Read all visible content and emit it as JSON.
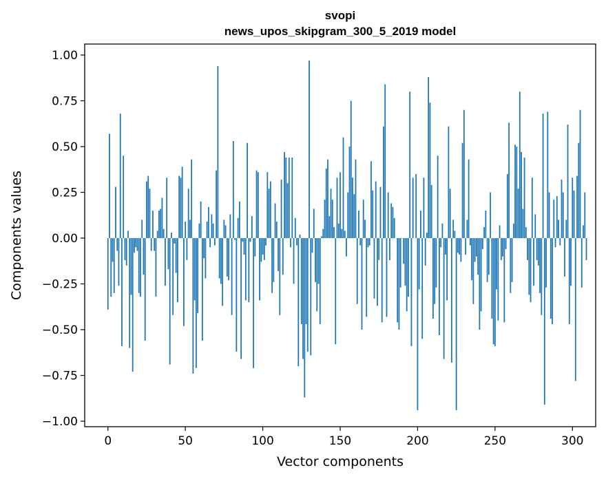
{
  "chart_data": {
    "type": "bar",
    "title": "svopi",
    "subtitle": "news_upos_skipgram_300_5_2019 model",
    "xlabel": "Vector components",
    "ylabel": "Components values",
    "xlim": [
      -15,
      315
    ],
    "ylim": [
      -1.03,
      1.06
    ],
    "xticks": [
      0,
      50,
      100,
      150,
      200,
      250,
      300
    ],
    "yticks": [
      -1.0,
      -0.75,
      -0.5,
      -0.25,
      0.0,
      0.25,
      0.5,
      0.75,
      1.0
    ],
    "xtick_labels": [
      "0",
      "50",
      "100",
      "150",
      "200",
      "250",
      "300"
    ],
    "ytick_labels": [
      "−1.00",
      "−0.75",
      "−0.50",
      "−0.25",
      "0.00",
      "0.25",
      "0.50",
      "0.75",
      "1.00"
    ],
    "bar_color": "#1f77b4",
    "grid": false,
    "values": [
      -0.39,
      0.57,
      -0.32,
      -0.13,
      -0.3,
      0.28,
      -0.07,
      -0.26,
      0.68,
      -0.59,
      0.45,
      -0.12,
      -0.15,
      0.04,
      -0.6,
      -0.31,
      -0.73,
      -0.08,
      -0.05,
      -0.07,
      -0.3,
      -0.32,
      0.1,
      -0.2,
      -0.56,
      0.31,
      0.34,
      0.27,
      -0.07,
      0.15,
      -0.07,
      -0.32,
      0.04,
      0.15,
      0.16,
      0.22,
      0.05,
      -0.26,
      0.33,
      -0.17,
      -0.69,
      0.03,
      -0.42,
      -0.03,
      -0.19,
      -0.35,
      0.34,
      0.33,
      0.39,
      -0.48,
      0.09,
      -0.12,
      0.27,
      0.1,
      0.43,
      -0.74,
      -0.34,
      -0.71,
      -0.41,
      0.08,
      0.2,
      -0.56,
      -0.11,
      -0.22,
      0.09,
      0.17,
      -0.05,
      0.13,
      0.08,
      -0.04,
      0.37,
      0.94,
      -0.22,
      -0.25,
      -0.37,
      0.1,
      0.07,
      -0.21,
      -0.23,
      0.13,
      -0.42,
      0.53,
      -0.01,
      -0.62,
      0.11,
      0.2,
      -0.66,
      -0.02,
      -0.09,
      -0.34,
      0.52,
      -0.35,
      -0.02,
      0.12,
      -0.71,
      -0.1,
      0.37,
      0.36,
      -0.34,
      -0.13,
      -0.09,
      -0.12,
      -0.04,
      0.36,
      0.27,
      0.31,
      -0.3,
      -0.24,
      0.19,
      0.09,
      -0.18,
      -0.42,
      0.32,
      -0.2,
      0.47,
      0.44,
      0.3,
      0.44,
      -0.05,
      0.44,
      -0.25,
      0.11,
      -0.04,
      -0.7,
      0.02,
      -0.47,
      -0.66,
      -0.87,
      -0.47,
      -0.62,
      0.97,
      -0.64,
      -0.08,
      0.16,
      -0.24,
      -0.4,
      -0.25,
      -0.47,
      0.01,
      0.05,
      0.21,
      0.38,
      0.43,
      0.12,
      0.27,
      0.21,
      0.06,
      -0.58,
      0.33,
      0.08,
      0.36,
      0.05,
      0.55,
      0.04,
      -0.1,
      0.25,
      0.5,
      0.75,
      0.33,
      0.24,
      0.43,
      -0.36,
      0.15,
      -0.04,
      -0.5,
      0.21,
      0.1,
      -0.43,
      -0.05,
      -0.04,
      0.42,
      0.26,
      -0.33,
      0.31,
      -0.37,
      -0.12,
      0.28,
      -0.46,
      0.61,
      0.84,
      -0.43,
      0.25,
      -0.12,
      0.19,
      0.17,
      0.11,
      0.0,
      -0.46,
      -0.5,
      -0.27,
      0.0,
      -0.14,
      -0.26,
      -0.4,
      -0.32,
      0.8,
      -0.59,
      0.33,
      0.0,
      0.35,
      -0.94,
      -0.28,
      0.15,
      -0.55,
      0.33,
      -0.15,
      0.03,
      0.88,
      0.74,
      0.29,
      -0.44,
      -0.36,
      -0.27,
      0.45,
      -0.53,
      -0.05,
      0.08,
      -0.66,
      -0.09,
      -0.34,
      0.61,
      0.27,
      -0.68,
      0.1,
      0.04,
      -0.94,
      -0.08,
      -0.09,
      -0.13,
      0.52,
      0.7,
      -0.09,
      0.1,
      0.43,
      -0.04,
      -0.23,
      -0.36,
      -0.13,
      -0.1,
      -0.2,
      -0.5,
      -0.4,
      -0.06,
      0.06,
      0.15,
      -0.24,
      -0.2,
      0.25,
      -0.44,
      -0.58,
      -0.59,
      -0.28,
      -0.45,
      0.07,
      -0.12,
      -0.1,
      -0.46,
      -0.06,
      0.35,
      0.63,
      -0.3,
      -0.24,
      0.08,
      0.51,
      0.5,
      0.27,
      0.8,
      0.47,
      0.16,
      0.44,
      0.06,
      -0.12,
      -0.31,
      -0.35,
      0.33,
      -0.26,
      0.13,
      -0.12,
      -0.15,
      -0.3,
      -0.42,
      0.68,
      -0.91,
      -0.27,
      0.69,
      0.25,
      -0.44,
      -0.47,
      0.21,
      -0.05,
      0.23,
      0.1,
      -0.04,
      0.32,
      0.25,
      -0.21,
      0.1,
      0.62,
      -0.47,
      -0.26,
      0.33,
      0.26,
      -0.78,
      0.34,
      0.52,
      0.7,
      -0.27,
      0.07,
      0.25,
      -0.12
    ]
  }
}
